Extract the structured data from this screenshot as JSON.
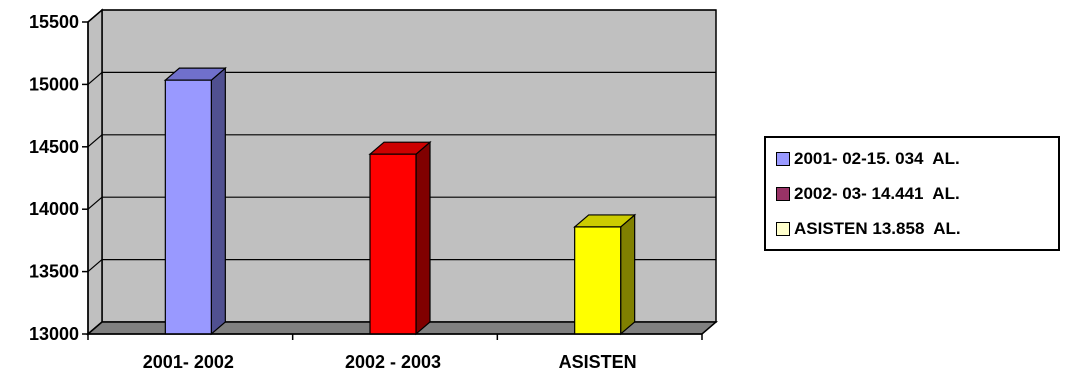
{
  "chart_data": {
    "type": "bar",
    "categories": [
      "2001- 2002",
      "2002 - 2003",
      "ASISTEN"
    ],
    "values": [
      15034,
      14441,
      13858
    ],
    "ylim": [
      13000,
      15500
    ],
    "yticks": [
      "13000",
      "13500",
      "14000",
      "14500",
      "15000",
      "15500"
    ],
    "grid": true,
    "legend_position": "right",
    "colors": {
      "bars": [
        "#9999ff",
        "#ff0000",
        "#ffff00"
      ],
      "bar_sides": [
        "#505090",
        "#800000",
        "#808000"
      ],
      "bar_tops": [
        "#7070cc",
        "#cc0000",
        "#cccc00"
      ],
      "legend_swatches": [
        "#9999ff",
        "#993366",
        "#ffffcc"
      ],
      "plot_wall": "#c0c0c0",
      "plot_floor": "#808080"
    },
    "legend": [
      "2001- 02-15. 034  AL.",
      "2002- 03- 14.441  AL.",
      "ASISTEN 13.858  AL."
    ]
  }
}
